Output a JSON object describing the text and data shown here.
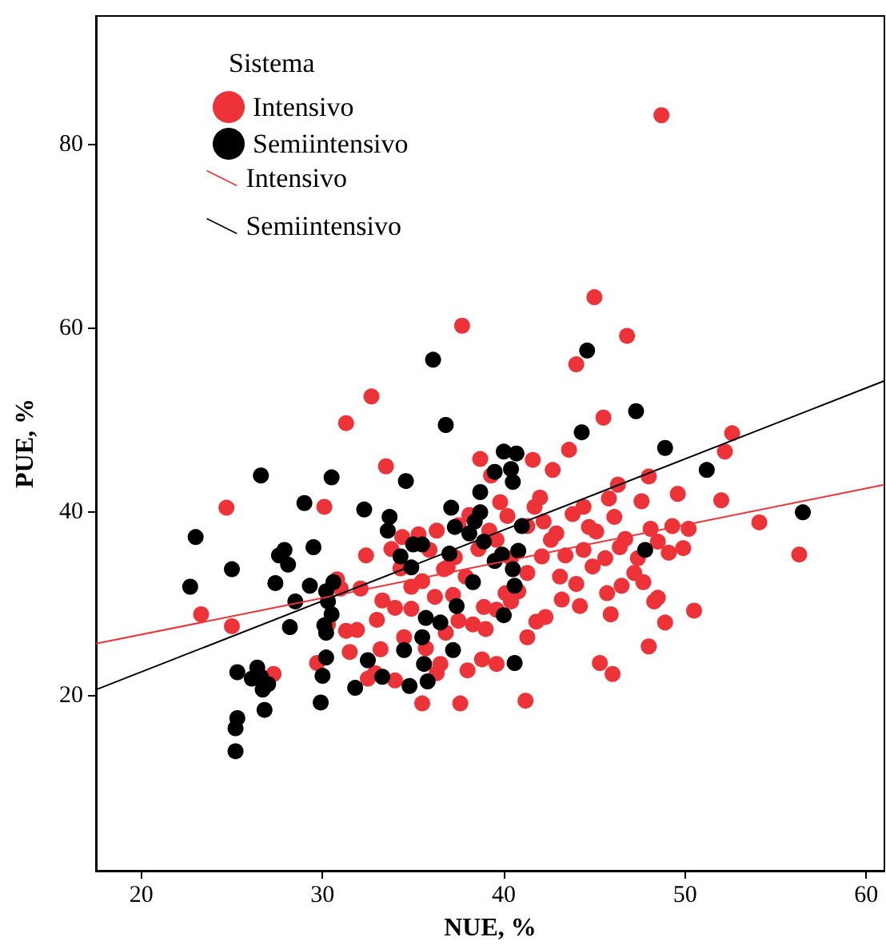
{
  "chart_data": {
    "type": "scatter",
    "xlabel": "NUE, %",
    "ylabel": "PUE, %",
    "legend_title": "Sistema",
    "legend": "top left",
    "grid": false,
    "marker": "circle",
    "xlim": [
      17.5,
      61
    ],
    "ylim": [
      1,
      94
    ],
    "xticks": [
      20,
      30,
      40,
      50,
      60
    ],
    "yticks": [
      20,
      40,
      60,
      80
    ],
    "series": [
      {
        "name": "Intensivo",
        "color": "#ee3338",
        "x": [
          24.7,
          23.3,
          25.0,
          27.3,
          30.1,
          31.3,
          32.7,
          33.5,
          37.7,
          44.0,
          45.0,
          46.8,
          48.7,
          43.6,
          45.5,
          46.3,
          48.0,
          49.6,
          52.6,
          52.2,
          54.1,
          56.3,
          52.0,
          50.5,
          48.5,
          48.0,
          46.0,
          45.3,
          44.2,
          47.4,
          48.5,
          47.2,
          46.7,
          45.7,
          44.9,
          43.4,
          42.9,
          42.0,
          41.6,
          41.3,
          40.8,
          40.4,
          41.3,
          41.2,
          39.6,
          38.9,
          38.8,
          37.6,
          37.5,
          37.2,
          37.3,
          36.7,
          36.2,
          35.5,
          35.5,
          34.5,
          34.0,
          33.3,
          33.0,
          32.4,
          32.5,
          31.9,
          31.5,
          31.3,
          30.8,
          29.7,
          30.3,
          33.8,
          34.3,
          34.9,
          35.9,
          36.9,
          37.5,
          38.1,
          38.7,
          39.3,
          39.8,
          41.7,
          42.2,
          42.6,
          42.1,
          43.1,
          44.0,
          44.7,
          45.6,
          46.4,
          46.1,
          45.8,
          47.6,
          48.1,
          49.3,
          49.1,
          49.9,
          50.2,
          48.3,
          46.5,
          44.4,
          43.2,
          42.3,
          41.8,
          40.1,
          39.0,
          38.3,
          38.0,
          36.5,
          36.3,
          34.0,
          33.2,
          32.9,
          37.9,
          38.6,
          39.2,
          40.2,
          41.3,
          43.8,
          44.4,
          45.1,
          45.9,
          48.9,
          47.7,
          39.6,
          36.8,
          35.7,
          34.9,
          32.1,
          31.0,
          34.4,
          35.3,
          36.3,
          39.6,
          40.4,
          42.7
        ],
        "values": [
          40.5,
          28.9,
          27.6,
          22.4,
          40.6,
          49.7,
          52.6,
          45.0,
          60.3,
          56.1,
          63.4,
          59.2,
          83.2,
          46.8,
          50.3,
          43.0,
          43.9,
          42.0,
          48.6,
          46.6,
          38.9,
          35.4,
          41.3,
          29.3,
          30.7,
          25.4,
          22.4,
          23.6,
          29.8,
          35.0,
          36.8,
          33.4,
          37.1,
          31.2,
          34.1,
          35.3,
          37.7,
          41.6,
          45.7,
          33.4,
          31.4,
          30.3,
          26.4,
          19.5,
          23.5,
          29.7,
          24.0,
          19.2,
          28.2,
          31.0,
          35.1,
          33.8,
          30.8,
          32.5,
          19.2,
          26.4,
          29.6,
          30.4,
          28.3,
          35.3,
          21.9,
          27.2,
          24.8,
          27.1,
          32.7,
          23.6,
          27.8,
          36.0,
          33.9,
          31.9,
          35.9,
          34.0,
          38.6,
          39.7,
          45.8,
          44.0,
          41.1,
          40.6,
          39.0,
          37.0,
          35.2,
          33.0,
          32.2,
          38.4,
          35.0,
          36.2,
          39.5,
          41.5,
          41.2,
          38.2,
          38.5,
          35.6,
          36.1,
          38.2,
          30.3,
          32.0,
          35.9,
          30.5,
          28.6,
          28.1,
          31.2,
          27.3,
          27.8,
          22.8,
          23.5,
          22.5,
          21.7,
          25.1,
          22.5,
          33.0,
          36.0,
          38.0,
          39.6,
          38.5,
          39.8,
          40.6,
          37.9,
          28.9,
          28.0,
          32.4,
          29.4,
          26.9,
          25.2,
          29.5,
          31.7,
          31.7,
          37.3,
          37.6,
          38.0,
          37.0,
          35.0,
          44.6
        ]
      },
      {
        "name": "Semiintensivo",
        "color": "#000000",
        "x": [
          23.0,
          22.7,
          26.6,
          25.0,
          25.3,
          25.3,
          25.2,
          25.2,
          26.1,
          26.4,
          26.6,
          27.0,
          26.8,
          26.7,
          27.4,
          27.9,
          28.1,
          28.5,
          27.6,
          28.2,
          29.3,
          29.0,
          29.5,
          30.5,
          30.2,
          30.3,
          30.6,
          30.1,
          30.5,
          30.2,
          30.2,
          30.0,
          29.9,
          31.8,
          32.5,
          33.3,
          32.3,
          33.6,
          33.7,
          34.3,
          34.6,
          35.0,
          34.9,
          35.5,
          35.7,
          35.5,
          34.5,
          35.6,
          34.8,
          35.8,
          36.1,
          36.8,
          37.1,
          37.0,
          37.3,
          38.1,
          38.7,
          38.9,
          39.5,
          40.0,
          40.4,
          40.5,
          40.7,
          41.0,
          40.8,
          40.5,
          39.9,
          40.6,
          40.0,
          40.6,
          38.3,
          37.2,
          39.5,
          44.3,
          44.6,
          47.3,
          48.9,
          51.2,
          47.8,
          56.5,
          36.5,
          37.4,
          38.7,
          38.4
        ],
        "values": [
          37.3,
          31.9,
          44.0,
          33.8,
          22.6,
          17.6,
          16.5,
          14.0,
          21.9,
          23.1,
          22.1,
          21.3,
          18.5,
          20.7,
          32.3,
          35.9,
          34.3,
          30.3,
          35.3,
          27.5,
          32.0,
          41.0,
          36.2,
          43.8,
          31.4,
          30.3,
          32.4,
          27.7,
          28.9,
          26.9,
          24.2,
          22.2,
          19.3,
          20.9,
          23.9,
          22.1,
          40.3,
          38.0,
          39.5,
          35.2,
          43.4,
          36.5,
          34.0,
          36.5,
          28.5,
          26.4,
          25.0,
          23.5,
          21.1,
          21.6,
          56.6,
          49.5,
          40.5,
          35.5,
          38.4,
          37.7,
          42.2,
          36.8,
          44.4,
          46.6,
          44.7,
          43.3,
          46.4,
          38.5,
          35.8,
          33.8,
          35.4,
          32.0,
          28.8,
          23.6,
          32.4,
          25.0,
          34.7,
          48.7,
          57.6,
          51.0,
          47.0,
          44.6,
          35.9,
          40.0,
          28.0,
          29.8,
          40.0,
          39.0
        ]
      },
      {
        "name": "Intensivo",
        "type": "line",
        "color": "#ee3338",
        "marker": "none",
        "line_style": "solid",
        "x": [
          17.5,
          61
        ],
        "values": [
          25.7,
          43.0
        ]
      },
      {
        "name": "Semiintensivo",
        "type": "line",
        "color": "#000000",
        "marker": "none",
        "line_style": "solid",
        "x": [
          17.5,
          61
        ],
        "values": [
          20.7,
          54.3
        ]
      }
    ]
  }
}
